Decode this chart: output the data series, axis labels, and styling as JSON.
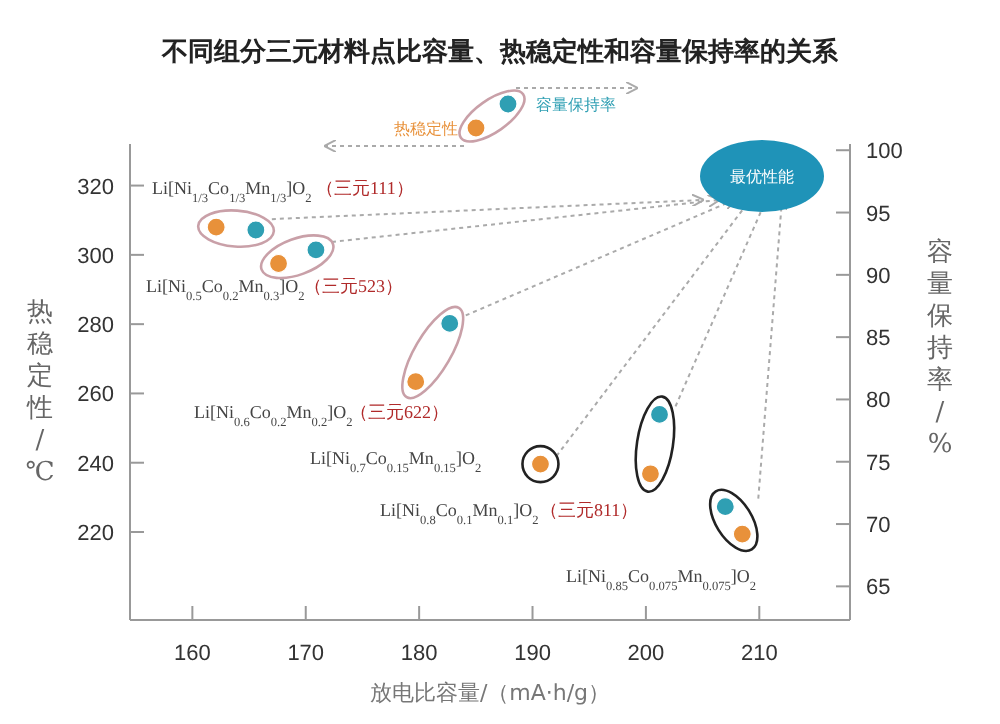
{
  "chart_data": {
    "type": "scatter",
    "title": "不同组分三元材料点比容量、热稳定性和容量保持率的关系",
    "xlabel": "放电比容量/（mA·h/g）",
    "ylabel": "热稳定性/℃",
    "y2label": "容量保持率/%",
    "xlim": [
      154.5,
      218
    ],
    "xticks": [
      160,
      170,
      180,
      190,
      200,
      210
    ],
    "ylim": [
      194.6,
      332
    ],
    "yticks": [
      220,
      240,
      260,
      280,
      300,
      320
    ],
    "y2lim": [
      62.3,
      100.5
    ],
    "y2ticks": [
      65,
      70,
      75,
      80,
      85,
      90,
      95,
      100
    ],
    "series": [
      {
        "name": "热稳定性",
        "color": "#e8913a",
        "x": [
          162.1,
          167.6,
          179.7,
          190.7,
          200.4,
          208.5
        ],
        "values": [
          308,
          297.5,
          263.4,
          239.6,
          236.8,
          219.4
        ]
      },
      {
        "name": "容量保持率",
        "color": "#2f9fb3",
        "axis": "y2",
        "x": [
          165.6,
          170.9,
          182.7,
          null,
          201.2,
          207
        ],
        "values": [
          93.6,
          92,
          86.1,
          null,
          78.8,
          71.4
        ]
      }
    ],
    "marker": "circle",
    "legend": "top",
    "annotations": [
      "Li[Ni$_{1/3}$Co$_{1/3}$Mn$_{1/3}$]O$_{2}$",
      "（三元111）",
      "Li[Ni$_{0.5}$Co$_{0.2}$Mn$_{0.3}$]O$_{2}$",
      "（三元523）",
      "Li[Ni$_{0.6}$Co$_{0.2}$Mn$_{0.2}$]O$_{2}$",
      "（三元622）",
      "Li[Ni$_{0.7}$Co$_{0.15}$Mn$_{0.15}$]O$_{2}$",
      "Li[Ni$_{0.8}$Co$_{0.1}$Mn$_{0.1}$]O$_{2}$",
      "（三元811）",
      "Li[Ni$_{0.85}$Co$_{0.075}$Mn$_{0.075}$]O$_{2}$",
      "最优性能"
    ]
  }
}
